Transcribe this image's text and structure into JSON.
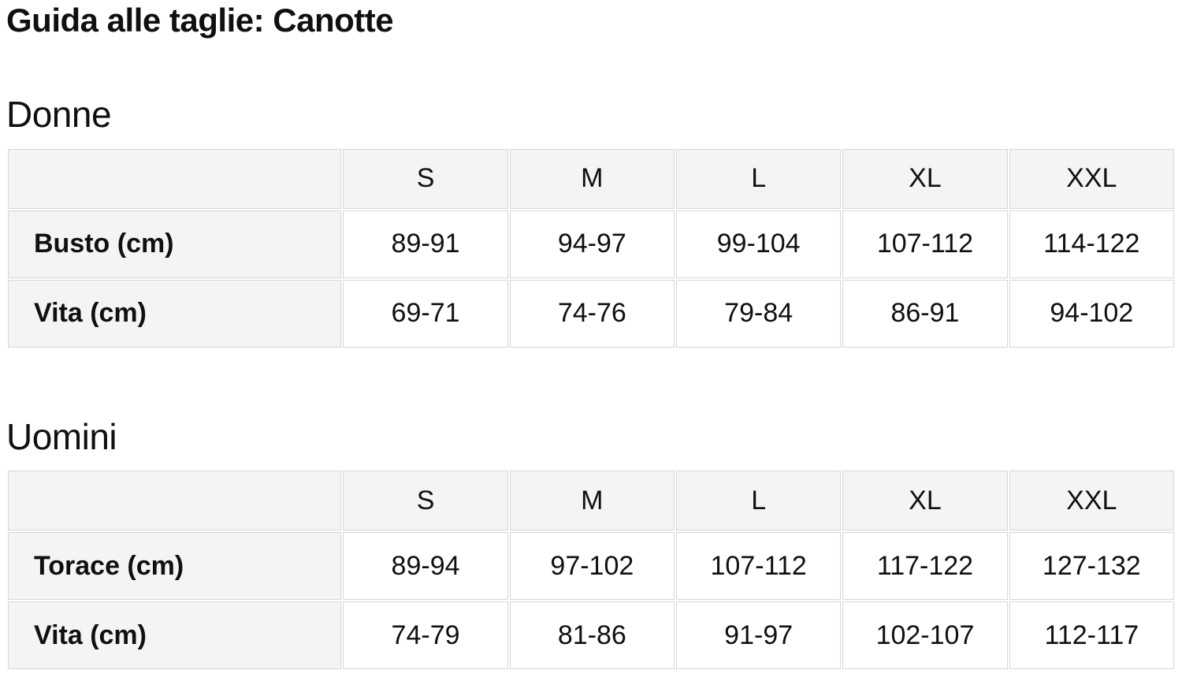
{
  "page": {
    "title": "Guida alle taglie: Canotte"
  },
  "colors": {
    "header_bg": "#f4f4f4",
    "cell_border": "#d6d6d6",
    "text": "#0f1111",
    "data_cell_bg": "#ffffff"
  },
  "sections": [
    {
      "heading": "Donne",
      "columns": [
        "S",
        "M",
        "L",
        "XL",
        "XXL"
      ],
      "rows": [
        {
          "label": "Busto (cm)",
          "values": [
            "89-91",
            "94-97",
            "99-104",
            "107-112",
            "114-122"
          ]
        },
        {
          "label": "Vita (cm)",
          "values": [
            "69-71",
            "74-76",
            "79-84",
            "86-91",
            "94-102"
          ]
        }
      ]
    },
    {
      "heading": "Uomini",
      "columns": [
        "S",
        "M",
        "L",
        "XL",
        "XXL"
      ],
      "rows": [
        {
          "label": "Torace (cm)",
          "values": [
            "89-94",
            "97-102",
            "107-112",
            "117-122",
            "127-132"
          ]
        },
        {
          "label": "Vita (cm)",
          "values": [
            "74-79",
            "81-86",
            "91-97",
            "102-107",
            "112-117"
          ]
        }
      ]
    }
  ]
}
